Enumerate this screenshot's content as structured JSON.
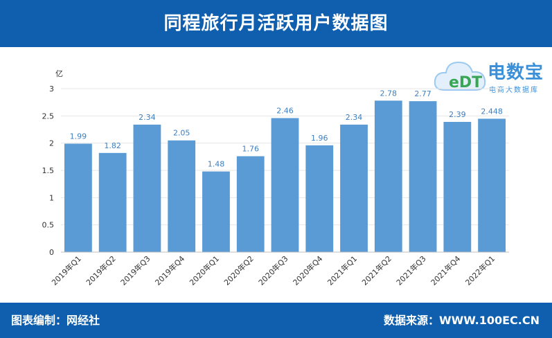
{
  "header": {
    "title": "同程旅行月活跃用户数据图"
  },
  "footer": {
    "compiled_by": "图表编制：网经社",
    "source": "数据来源：WWW.100EC.CN"
  },
  "logo": {
    "name": "电数宝",
    "subtitle": "电商大数据库",
    "mark_text": "eDT"
  },
  "colors": {
    "header_bg": "#0f5fae",
    "bar": "#5b9bd5",
    "value_label": "#3d7fc0"
  },
  "chart_data": {
    "type": "bar",
    "unit_label": "亿",
    "categories": [
      "2019年Q1",
      "2019年Q2",
      "2019年Q3",
      "2019年Q4",
      "2020年Q1",
      "2020年Q2",
      "2020年Q3",
      "2020年Q4",
      "2021年Q1",
      "2021年Q2",
      "2021年Q3",
      "2021年Q4",
      "2022年Q1"
    ],
    "values": [
      1.99,
      1.82,
      2.34,
      2.05,
      1.48,
      1.76,
      2.46,
      1.96,
      2.34,
      2.78,
      2.77,
      2.39,
      2.448
    ],
    "value_labels": [
      "1.99",
      "1.82",
      "2.34",
      "2.05",
      "1.48",
      "1.76",
      "2.46",
      "1.96",
      "2.34",
      "2.78",
      "2.77",
      "2.39",
      "2.448"
    ],
    "yticks": [
      "0",
      "0.5",
      "1",
      "1.5",
      "2",
      "2.5",
      "3"
    ],
    "ylim": [
      0,
      3
    ],
    "grid": true
  }
}
